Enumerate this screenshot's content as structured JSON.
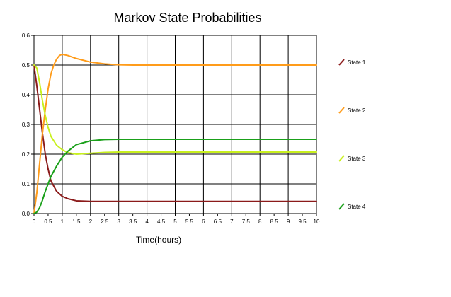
{
  "chart_data": {
    "type": "line",
    "title": "Markov State Probabilities",
    "xlabel": "Time(hours)",
    "ylabel": "",
    "xlim": [
      0,
      10
    ],
    "ylim": [
      0,
      0.6
    ],
    "grid": true,
    "legend_position": "right",
    "x_ticks": [
      "0",
      "0.5",
      "1",
      "1.5",
      "2",
      "2.5",
      "3",
      "3.5",
      "4",
      "4.5",
      "5",
      "5.5",
      "6",
      "6.5",
      "7",
      "7.5",
      "8",
      "8.5",
      "9",
      "9.5",
      "10"
    ],
    "y_ticks": [
      "0.0",
      "0.1",
      "0.2",
      "0.3",
      "0.4",
      "0.5",
      "0.6"
    ],
    "series": [
      {
        "name": "State 1",
        "color": "#8b1a1a",
        "x": [
          0,
          0.1,
          0.2,
          0.3,
          0.4,
          0.5,
          0.6,
          0.8,
          1.0,
          1.2,
          1.5,
          2,
          2.5,
          3,
          4,
          5,
          6,
          7,
          8,
          9,
          10
        ],
        "y": [
          0.5,
          0.43,
          0.35,
          0.27,
          0.2,
          0.15,
          0.11,
          0.075,
          0.058,
          0.05,
          0.043,
          0.041,
          0.041,
          0.041,
          0.041,
          0.041,
          0.041,
          0.041,
          0.041,
          0.041,
          0.041
        ]
      },
      {
        "name": "State 2",
        "color": "#ff9c1a",
        "x": [
          0,
          0.1,
          0.2,
          0.3,
          0.4,
          0.5,
          0.6,
          0.7,
          0.8,
          0.9,
          1.0,
          1.2,
          1.5,
          2,
          2.5,
          3,
          3.5,
          4,
          5,
          6,
          7,
          8,
          9,
          10
        ],
        "y": [
          0.0,
          0.07,
          0.17,
          0.27,
          0.35,
          0.42,
          0.47,
          0.5,
          0.52,
          0.532,
          0.536,
          0.532,
          0.522,
          0.51,
          0.504,
          0.501,
          0.5,
          0.5,
          0.5,
          0.5,
          0.5,
          0.5,
          0.5,
          0.5
        ]
      },
      {
        "name": "State 3",
        "color": "#c8f01e",
        "x": [
          0,
          0.1,
          0.2,
          0.3,
          0.4,
          0.5,
          0.6,
          0.8,
          1.0,
          1.2,
          1.5,
          2,
          2.5,
          3,
          4,
          5,
          6,
          7,
          8,
          9,
          10
        ],
        "y": [
          0.5,
          0.49,
          0.44,
          0.38,
          0.33,
          0.29,
          0.26,
          0.23,
          0.215,
          0.205,
          0.2,
          0.203,
          0.206,
          0.207,
          0.207,
          0.207,
          0.207,
          0.207,
          0.207,
          0.207,
          0.207
        ]
      },
      {
        "name": "State 4",
        "color": "#1aa01a",
        "x": [
          0,
          0.1,
          0.2,
          0.3,
          0.4,
          0.5,
          0.6,
          0.8,
          1.0,
          1.2,
          1.5,
          2,
          2.5,
          3,
          4,
          5,
          6,
          7,
          8,
          9,
          10
        ],
        "y": [
          0.0,
          0.005,
          0.02,
          0.045,
          0.075,
          0.1,
          0.125,
          0.16,
          0.19,
          0.21,
          0.232,
          0.245,
          0.249,
          0.25,
          0.25,
          0.25,
          0.25,
          0.25,
          0.25,
          0.25,
          0.25
        ]
      }
    ]
  }
}
